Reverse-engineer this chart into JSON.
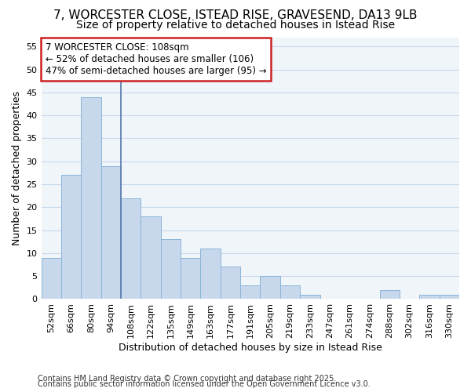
{
  "title_line1": "7, WORCESTER CLOSE, ISTEAD RISE, GRAVESEND, DA13 9LB",
  "title_line2": "Size of property relative to detached houses in Istead Rise",
  "categories": [
    "52sqm",
    "66sqm",
    "80sqm",
    "94sqm",
    "108sqm",
    "122sqm",
    "135sqm",
    "149sqm",
    "163sqm",
    "177sqm",
    "191sqm",
    "205sqm",
    "219sqm",
    "233sqm",
    "247sqm",
    "261sqm",
    "274sqm",
    "288sqm",
    "302sqm",
    "316sqm",
    "330sqm"
  ],
  "values": [
    9,
    27,
    44,
    29,
    22,
    18,
    13,
    9,
    11,
    7,
    3,
    5,
    3,
    1,
    0,
    0,
    0,
    2,
    0,
    1,
    1
  ],
  "bar_color": "#c8d8ec",
  "bar_edge_color": "#8ab4d8",
  "property_index": 4,
  "vline_color": "#5577aa",
  "annotation_text": "7 WORCESTER CLOSE: 108sqm\n← 52% of detached houses are smaller (106)\n47% of semi-detached houses are larger (95) →",
  "annotation_box_color": "#ffffff",
  "annotation_box_edge_color": "#cc2222",
  "xlabel": "Distribution of detached houses by size in Istead Rise",
  "ylabel": "Number of detached properties",
  "ylim": [
    0,
    57
  ],
  "yticks": [
    0,
    5,
    10,
    15,
    20,
    25,
    30,
    35,
    40,
    45,
    50,
    55
  ],
  "footer_line1": "Contains HM Land Registry data © Crown copyright and database right 2025.",
  "footer_line2": "Contains public sector information licensed under the Open Government Licence v3.0.",
  "background_color": "#f0f4f8",
  "grid_color": "#c8d8ec",
  "title_fontsize": 11,
  "subtitle_fontsize": 10,
  "axis_label_fontsize": 9,
  "tick_fontsize": 8,
  "annotation_fontsize": 8.5,
  "footer_fontsize": 7
}
